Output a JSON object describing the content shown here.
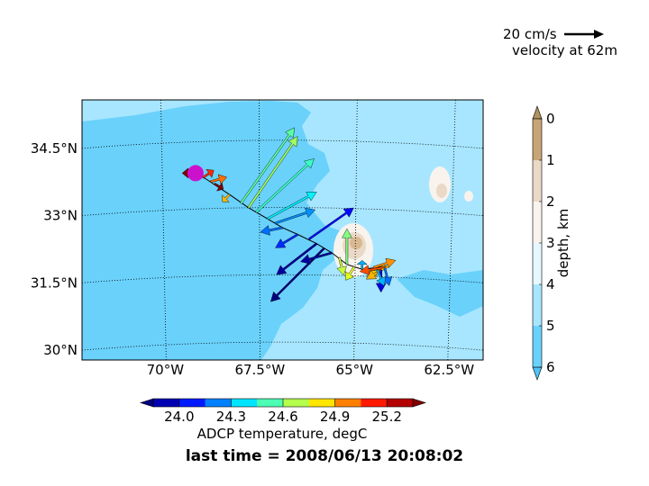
{
  "chart_data": {
    "type": "quiver-map",
    "title": "last time = 2008/06/13 20:08:02",
    "reference_vector": {
      "label": "20 cm/s",
      "sublabel": "velocity at 62m"
    },
    "map": {
      "lon_range": [
        -72.2,
        -61.6
      ],
      "lat_range": [
        29.7,
        35.5
      ],
      "xticks": [
        -70,
        -67.5,
        -65,
        -62.5
      ],
      "xtick_labels": [
        "70°W",
        "67.5°W",
        "65°W",
        "62.5°W"
      ],
      "yticks": [
        30,
        31.5,
        33,
        34.5
      ],
      "ytick_labels": [
        "30°N",
        "31.5°N",
        "33°N",
        "34.5°N"
      ],
      "grid": "dotted"
    },
    "track": [
      [
        -69.2,
        33.8
      ],
      [
        -68.9,
        33.65
      ],
      [
        -68.3,
        33.3
      ],
      [
        -67.8,
        33.0
      ],
      [
        -67.3,
        32.75
      ],
      [
        -66.9,
        32.55
      ],
      [
        -66.5,
        32.4
      ],
      [
        -66.0,
        32.2
      ],
      [
        -65.6,
        32.0
      ],
      [
        -65.2,
        31.75
      ],
      [
        -64.8,
        31.65
      ],
      [
        -64.4,
        31.7
      ],
      [
        -64.1,
        31.75
      ]
    ],
    "current_position": [
      -69.2,
      33.8
    ],
    "arrows": [
      {
        "lon": -69.2,
        "lat": 33.8,
        "u": -15,
        "v": 0,
        "temp": 25.35
      },
      {
        "lon": -69.0,
        "lat": 33.7,
        "u": 12,
        "v": 8,
        "temp": 25.1
      },
      {
        "lon": -68.8,
        "lat": 33.6,
        "u": 18,
        "v": 5,
        "temp": 25.0
      },
      {
        "lon": -68.7,
        "lat": 33.55,
        "u": 10,
        "v": -6,
        "temp": 25.35
      },
      {
        "lon": -68.3,
        "lat": 33.3,
        "u": -8,
        "v": -8,
        "temp": 24.9
      },
      {
        "lon": -68.0,
        "lat": 33.1,
        "u": 60,
        "v": 85,
        "temp": 24.55
      },
      {
        "lon": -67.8,
        "lat": 33.0,
        "u": 55,
        "v": 80,
        "temp": 24.65
      },
      {
        "lon": -67.6,
        "lat": 32.9,
        "u": 65,
        "v": 60,
        "temp": 24.5
      },
      {
        "lon": -67.3,
        "lat": 32.75,
        "u": 55,
        "v": 30,
        "temp": 24.4
      },
      {
        "lon": -67.1,
        "lat": 32.65,
        "u": 45,
        "v": 15,
        "temp": 24.25
      },
      {
        "lon": -66.9,
        "lat": 32.55,
        "u": -25,
        "v": -5,
        "temp": 24.2
      },
      {
        "lon": -66.5,
        "lat": 32.4,
        "u": -25,
        "v": -15,
        "temp": 24.1
      },
      {
        "lon": -66.2,
        "lat": 32.3,
        "u": 50,
        "v": 35,
        "temp": 24.05
      },
      {
        "lon": -66.0,
        "lat": 32.2,
        "u": -45,
        "v": -35,
        "temp": 23.9
      },
      {
        "lon": -65.8,
        "lat": 32.1,
        "u": -60,
        "v": -60,
        "temp": 23.85
      },
      {
        "lon": -65.6,
        "lat": 32.0,
        "u": -35,
        "v": -10,
        "temp": 23.9
      },
      {
        "lon": -65.4,
        "lat": 31.9,
        "u": 5,
        "v": -20,
        "temp": 24.7
      },
      {
        "lon": -65.2,
        "lat": 31.75,
        "u": 0,
        "v": 40,
        "temp": 24.6
      },
      {
        "lon": -65.0,
        "lat": 31.7,
        "u": -10,
        "v": -15,
        "temp": 24.75
      },
      {
        "lon": -64.8,
        "lat": 31.65,
        "u": 0,
        "v": 10,
        "temp": 24.3
      },
      {
        "lon": -64.5,
        "lat": 31.7,
        "u": 25,
        "v": 8,
        "temp": 24.95
      },
      {
        "lon": -64.2,
        "lat": 31.75,
        "u": -20,
        "v": -12,
        "temp": 24.85
      },
      {
        "lon": -64.15,
        "lat": 31.72,
        "u": -30,
        "v": -5,
        "temp": 25.05
      },
      {
        "lon": -64.1,
        "lat": 31.75,
        "u": -25,
        "v": -15,
        "temp": 24.9
      },
      {
        "lon": -64.2,
        "lat": 31.7,
        "u": 5,
        "v": -20,
        "temp": 24.2
      },
      {
        "lon": -64.3,
        "lat": 31.65,
        "u": 0,
        "v": -25,
        "temp": 24.0
      },
      {
        "lon": -64.4,
        "lat": 31.65,
        "u": 8,
        "v": -18,
        "temp": 24.3
      }
    ],
    "depth_colorbar": {
      "label": "depth, km",
      "ticks": [
        "0",
        "1",
        "2",
        "3",
        "4",
        "5",
        "6"
      ],
      "colors": [
        "#c8a574",
        "#ead9c6",
        "#f9f3ee",
        "#e6f8ff",
        "#a8e6ff",
        "#6ad1fb"
      ],
      "extend_colors": [
        "#b09060",
        "#4fc3f7"
      ]
    },
    "temp_colorbar": {
      "label": "ADCP temperature, degC",
      "ticks": [
        "24.0",
        "24.3",
        "24.6",
        "24.9",
        "25.2"
      ],
      "vmin": 23.85,
      "vmax": 25.35,
      "n_segments": 10
    }
  }
}
